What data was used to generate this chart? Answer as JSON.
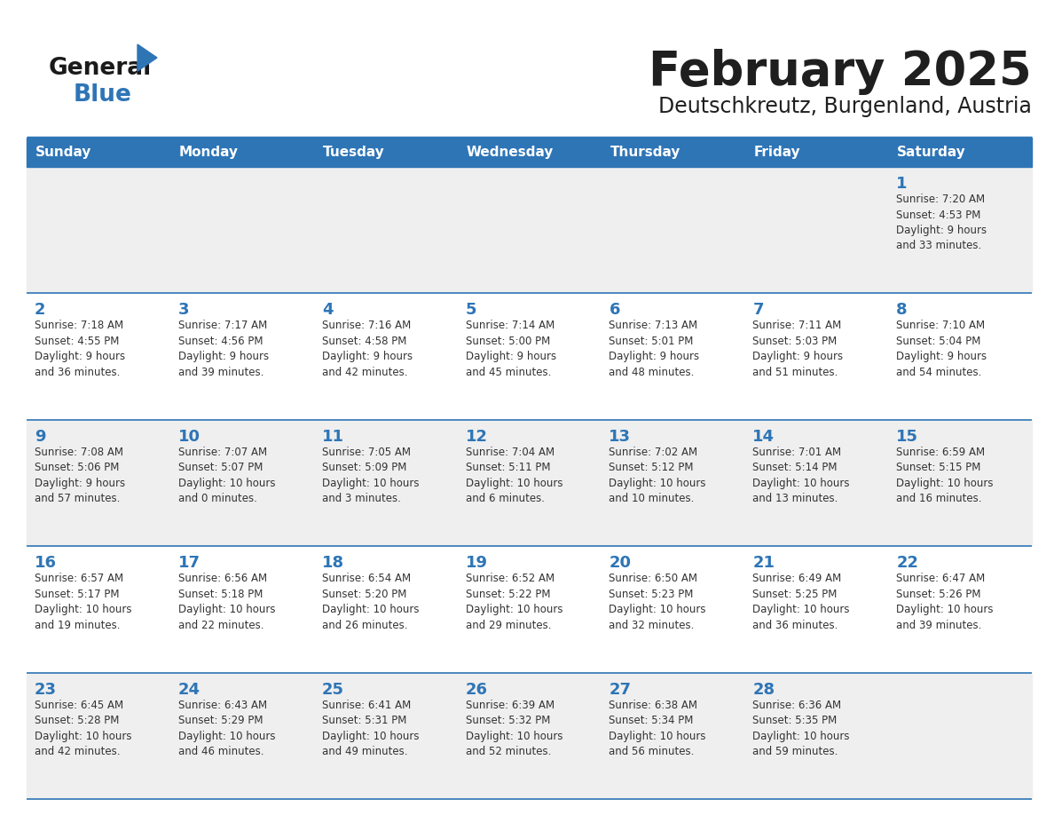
{
  "title": "February 2025",
  "subtitle": "Deutschkreutz, Burgenland, Austria",
  "header_color": "#2E75B6",
  "header_text_color": "#FFFFFF",
  "cell_bg_odd": "#EFEFEF",
  "cell_bg_even": "#FFFFFF",
  "day_names": [
    "Sunday",
    "Monday",
    "Tuesday",
    "Wednesday",
    "Thursday",
    "Friday",
    "Saturday"
  ],
  "title_color": "#1F1F1F",
  "subtitle_color": "#1F1F1F",
  "day_num_color": "#2E75B6",
  "text_color": "#333333",
  "line_color": "#2E75B6",
  "logo_black": "#1A1A1A",
  "logo_blue": "#2E75B6",
  "logo_triangle": "#2E75B6",
  "calendar": [
    [
      null,
      null,
      null,
      null,
      null,
      null,
      {
        "day": 1,
        "sunrise": "7:20 AM",
        "sunset": "4:53 PM",
        "daylight_line1": "9 hours",
        "daylight_line2": "and 33 minutes."
      }
    ],
    [
      {
        "day": 2,
        "sunrise": "7:18 AM",
        "sunset": "4:55 PM",
        "daylight_line1": "9 hours",
        "daylight_line2": "and 36 minutes."
      },
      {
        "day": 3,
        "sunrise": "7:17 AM",
        "sunset": "4:56 PM",
        "daylight_line1": "9 hours",
        "daylight_line2": "and 39 minutes."
      },
      {
        "day": 4,
        "sunrise": "7:16 AM",
        "sunset": "4:58 PM",
        "daylight_line1": "9 hours",
        "daylight_line2": "and 42 minutes."
      },
      {
        "day": 5,
        "sunrise": "7:14 AM",
        "sunset": "5:00 PM",
        "daylight_line1": "9 hours",
        "daylight_line2": "and 45 minutes."
      },
      {
        "day": 6,
        "sunrise": "7:13 AM",
        "sunset": "5:01 PM",
        "daylight_line1": "9 hours",
        "daylight_line2": "and 48 minutes."
      },
      {
        "day": 7,
        "sunrise": "7:11 AM",
        "sunset": "5:03 PM",
        "daylight_line1": "9 hours",
        "daylight_line2": "and 51 minutes."
      },
      {
        "day": 8,
        "sunrise": "7:10 AM",
        "sunset": "5:04 PM",
        "daylight_line1": "9 hours",
        "daylight_line2": "and 54 minutes."
      }
    ],
    [
      {
        "day": 9,
        "sunrise": "7:08 AM",
        "sunset": "5:06 PM",
        "daylight_line1": "9 hours",
        "daylight_line2": "and 57 minutes."
      },
      {
        "day": 10,
        "sunrise": "7:07 AM",
        "sunset": "5:07 PM",
        "daylight_line1": "10 hours",
        "daylight_line2": "and 0 minutes."
      },
      {
        "day": 11,
        "sunrise": "7:05 AM",
        "sunset": "5:09 PM",
        "daylight_line1": "10 hours",
        "daylight_line2": "and 3 minutes."
      },
      {
        "day": 12,
        "sunrise": "7:04 AM",
        "sunset": "5:11 PM",
        "daylight_line1": "10 hours",
        "daylight_line2": "and 6 minutes."
      },
      {
        "day": 13,
        "sunrise": "7:02 AM",
        "sunset": "5:12 PM",
        "daylight_line1": "10 hours",
        "daylight_line2": "and 10 minutes."
      },
      {
        "day": 14,
        "sunrise": "7:01 AM",
        "sunset": "5:14 PM",
        "daylight_line1": "10 hours",
        "daylight_line2": "and 13 minutes."
      },
      {
        "day": 15,
        "sunrise": "6:59 AM",
        "sunset": "5:15 PM",
        "daylight_line1": "10 hours",
        "daylight_line2": "and 16 minutes."
      }
    ],
    [
      {
        "day": 16,
        "sunrise": "6:57 AM",
        "sunset": "5:17 PM",
        "daylight_line1": "10 hours",
        "daylight_line2": "and 19 minutes."
      },
      {
        "day": 17,
        "sunrise": "6:56 AM",
        "sunset": "5:18 PM",
        "daylight_line1": "10 hours",
        "daylight_line2": "and 22 minutes."
      },
      {
        "day": 18,
        "sunrise": "6:54 AM",
        "sunset": "5:20 PM",
        "daylight_line1": "10 hours",
        "daylight_line2": "and 26 minutes."
      },
      {
        "day": 19,
        "sunrise": "6:52 AM",
        "sunset": "5:22 PM",
        "daylight_line1": "10 hours",
        "daylight_line2": "and 29 minutes."
      },
      {
        "day": 20,
        "sunrise": "6:50 AM",
        "sunset": "5:23 PM",
        "daylight_line1": "10 hours",
        "daylight_line2": "and 32 minutes."
      },
      {
        "day": 21,
        "sunrise": "6:49 AM",
        "sunset": "5:25 PM",
        "daylight_line1": "10 hours",
        "daylight_line2": "and 36 minutes."
      },
      {
        "day": 22,
        "sunrise": "6:47 AM",
        "sunset": "5:26 PM",
        "daylight_line1": "10 hours",
        "daylight_line2": "and 39 minutes."
      }
    ],
    [
      {
        "day": 23,
        "sunrise": "6:45 AM",
        "sunset": "5:28 PM",
        "daylight_line1": "10 hours",
        "daylight_line2": "and 42 minutes."
      },
      {
        "day": 24,
        "sunrise": "6:43 AM",
        "sunset": "5:29 PM",
        "daylight_line1": "10 hours",
        "daylight_line2": "and 46 minutes."
      },
      {
        "day": 25,
        "sunrise": "6:41 AM",
        "sunset": "5:31 PM",
        "daylight_line1": "10 hours",
        "daylight_line2": "and 49 minutes."
      },
      {
        "day": 26,
        "sunrise": "6:39 AM",
        "sunset": "5:32 PM",
        "daylight_line1": "10 hours",
        "daylight_line2": "and 52 minutes."
      },
      {
        "day": 27,
        "sunrise": "6:38 AM",
        "sunset": "5:34 PM",
        "daylight_line1": "10 hours",
        "daylight_line2": "and 56 minutes."
      },
      {
        "day": 28,
        "sunrise": "6:36 AM",
        "sunset": "5:35 PM",
        "daylight_line1": "10 hours",
        "daylight_line2": "and 59 minutes."
      },
      null
    ]
  ]
}
